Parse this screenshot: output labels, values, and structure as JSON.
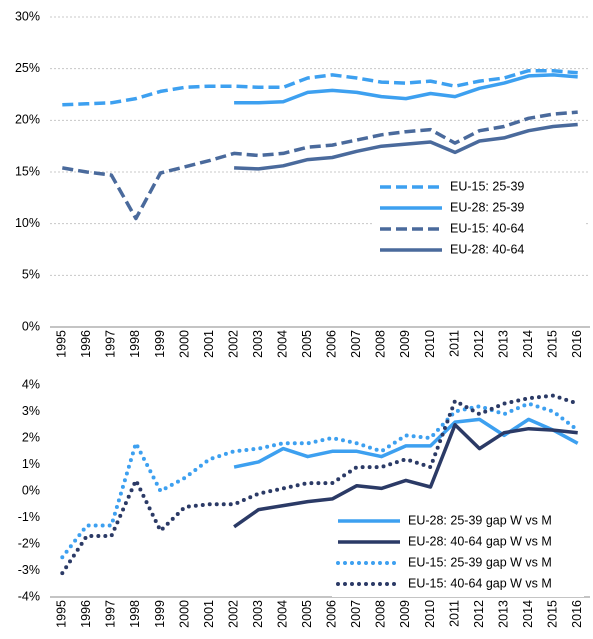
{
  "chart_data": [
    {
      "type": "line",
      "categories": [
        "1995",
        "1996",
        "1997",
        "1998",
        "1999",
        "2000",
        "2001",
        "2002",
        "2003",
        "2004",
        "2005",
        "2006",
        "2007",
        "2008",
        "2009",
        "2010",
        "2011",
        "2012",
        "2013",
        "2014",
        "2015",
        "2016"
      ],
      "ylim": [
        0,
        30
      ],
      "yticks": [
        {
          "value": 0,
          "label": "0%"
        },
        {
          "value": 5,
          "label": "5%"
        },
        {
          "value": 10,
          "label": "10%"
        },
        {
          "value": 15,
          "label": "15%"
        },
        {
          "value": 20,
          "label": "20%"
        },
        {
          "value": 25,
          "label": "25%"
        },
        {
          "value": 30,
          "label": "30%"
        }
      ],
      "grid": true,
      "legend": "center right",
      "series": [
        {
          "name": "EU-15:  25-39",
          "color": "#3da0f0",
          "dash": "dashed",
          "values": [
            21.5,
            21.6,
            21.7,
            22.1,
            22.8,
            23.2,
            23.3,
            23.3,
            23.2,
            23.2,
            24.1,
            24.4,
            24.1,
            23.7,
            23.6,
            23.8,
            23.3,
            23.8,
            24.1,
            24.8,
            24.8,
            24.6
          ]
        },
        {
          "name": "EU-28:  25-39",
          "color": "#3da0f0",
          "dash": "solid",
          "values": [
            null,
            null,
            null,
            null,
            null,
            null,
            null,
            21.7,
            21.7,
            21.8,
            22.7,
            22.9,
            22.7,
            22.3,
            22.1,
            22.6,
            22.3,
            23.1,
            23.6,
            24.3,
            24.4,
            24.2
          ]
        },
        {
          "name": "EU-15:  40-64",
          "color": "#4a6a9c",
          "dash": "dashed",
          "values": [
            15.4,
            15.0,
            14.7,
            10.5,
            14.9,
            15.5,
            16.1,
            16.8,
            16.6,
            16.8,
            17.4,
            17.6,
            18.1,
            18.6,
            18.9,
            19.1,
            17.8,
            19.0,
            19.4,
            20.2,
            20.6,
            20.8
          ]
        },
        {
          "name": "EU-28:  40-64",
          "color": "#4a6a9c",
          "dash": "solid",
          "values": [
            null,
            null,
            null,
            null,
            null,
            null,
            null,
            15.4,
            15.3,
            15.6,
            16.2,
            16.4,
            17.0,
            17.5,
            17.7,
            17.9,
            16.9,
            18.0,
            18.3,
            19.0,
            19.4,
            19.6
          ]
        }
      ]
    },
    {
      "type": "line",
      "categories": [
        "1995",
        "1996",
        "1997",
        "1998",
        "1999",
        "2000",
        "2001",
        "2002",
        "2003",
        "2004",
        "2005",
        "2006",
        "2007",
        "2008",
        "2009",
        "2010",
        "2011",
        "2012",
        "2013",
        "2014",
        "2015",
        "2016"
      ],
      "ylim": [
        -4,
        4
      ],
      "yticks": [
        {
          "value": -4,
          "label": "-4%"
        },
        {
          "value": -3,
          "label": "-3%"
        },
        {
          "value": -2,
          "label": "-2%"
        },
        {
          "value": -1,
          "label": "-1%"
        },
        {
          "value": 0,
          "label": "0%"
        },
        {
          "value": 1,
          "label": "1%"
        },
        {
          "value": 2,
          "label": "2%"
        },
        {
          "value": 3,
          "label": "3%"
        },
        {
          "value": 4,
          "label": "4%"
        }
      ],
      "grid": false,
      "legend": "lower right",
      "series": [
        {
          "name": "EU-28:  25-39 gap W vs M",
          "color": "#3da0f0",
          "dash": "solid",
          "values": [
            null,
            null,
            null,
            null,
            null,
            null,
            null,
            0.9,
            1.1,
            1.6,
            1.3,
            1.5,
            1.5,
            1.3,
            1.7,
            1.7,
            2.6,
            2.7,
            2.1,
            2.7,
            2.3,
            1.8
          ]
        },
        {
          "name": "EU-28:  40-64 gap W vs M",
          "color": "#2b3a66",
          "dash": "solid",
          "values": [
            null,
            null,
            null,
            null,
            null,
            null,
            null,
            -1.35,
            -0.7,
            -0.55,
            -0.4,
            -0.3,
            0.2,
            0.1,
            0.4,
            0.15,
            2.5,
            1.6,
            2.2,
            2.35,
            2.3,
            2.2
          ]
        },
        {
          "name": "EU-15: 25-39 gap W vs M",
          "color": "#3da0f0",
          "dash": "dotted",
          "values": [
            -2.5,
            -1.3,
            -1.3,
            1.8,
            0.0,
            0.5,
            1.2,
            1.5,
            1.6,
            1.8,
            1.8,
            2.0,
            1.8,
            1.5,
            2.1,
            2.0,
            3.0,
            3.2,
            2.9,
            3.3,
            3.0,
            2.3
          ]
        },
        {
          "name": "EU-15: 40-64 gap W vs M",
          "color": "#2b3a66",
          "dash": "dotted",
          "values": [
            -3.1,
            -1.7,
            -1.7,
            0.4,
            -1.5,
            -0.6,
            -0.5,
            -0.5,
            -0.1,
            0.1,
            0.3,
            0.3,
            0.9,
            0.9,
            1.2,
            0.9,
            3.4,
            2.9,
            3.3,
            3.5,
            3.6,
            3.3
          ]
        }
      ]
    }
  ]
}
